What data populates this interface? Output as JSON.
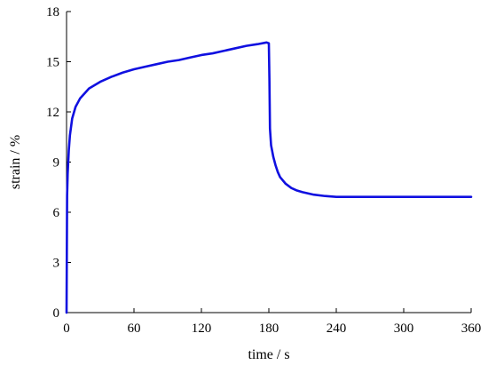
{
  "chart_data": {
    "type": "line",
    "title": "",
    "xlabel": "time / s",
    "ylabel": "strain / %",
    "xlim": [
      0,
      360
    ],
    "ylim": [
      0,
      18
    ],
    "xticks": [
      0,
      60,
      120,
      180,
      240,
      300,
      360
    ],
    "yticks": [
      0,
      3,
      6,
      9,
      12,
      15,
      18
    ],
    "grid": false,
    "legend": "none",
    "series": [
      {
        "color": "#1010e0",
        "x": [
          0,
          0.5,
          1,
          2,
          3,
          5,
          8,
          12,
          16,
          20,
          25,
          30,
          40,
          50,
          60,
          70,
          80,
          90,
          100,
          110,
          120,
          130,
          140,
          150,
          160,
          170,
          178,
          180,
          180.5,
          181,
          182,
          184,
          186,
          188,
          190,
          195,
          200,
          205,
          210,
          220,
          230,
          240,
          260,
          280,
          300,
          330,
          360
        ],
        "y": [
          0,
          7.0,
          8.3,
          9.7,
          10.6,
          11.6,
          12.3,
          12.8,
          13.1,
          13.4,
          13.6,
          13.8,
          14.1,
          14.35,
          14.55,
          14.7,
          14.85,
          15.0,
          15.1,
          15.25,
          15.4,
          15.5,
          15.65,
          15.8,
          15.95,
          16.05,
          16.15,
          16.1,
          14.0,
          11.0,
          10.0,
          9.3,
          8.8,
          8.4,
          8.1,
          7.7,
          7.45,
          7.3,
          7.2,
          7.05,
          6.97,
          6.92,
          6.92,
          6.92,
          6.92,
          6.92,
          6.92
        ]
      }
    ]
  }
}
